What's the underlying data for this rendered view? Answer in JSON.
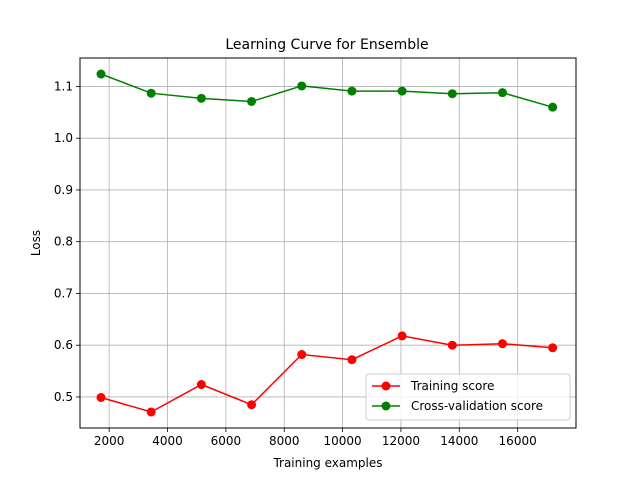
{
  "chart_data": {
    "type": "line",
    "title": "Learning Curve for Ensemble",
    "xlabel": "Training examples",
    "ylabel": "Loss",
    "xlim": [
      1000,
      18000
    ],
    "ylim": [
      0.44,
      1.155
    ],
    "xticks": [
      2000,
      4000,
      6000,
      8000,
      10000,
      12000,
      14000,
      16000
    ],
    "yticks": [
      0.5,
      0.6,
      0.7,
      0.8,
      0.9,
      1.0,
      1.1
    ],
    "xtick_labels": [
      "2000",
      "4000",
      "6000",
      "8000",
      "10000",
      "12000",
      "14000",
      "16000"
    ],
    "ytick_labels": [
      "0.5",
      "0.6",
      "0.7",
      "0.8",
      "0.9",
      "1.0",
      "1.1"
    ],
    "grid": true,
    "legend_position": "lower-right",
    "x": [
      1720,
      3440,
      5160,
      6880,
      8600,
      10320,
      12040,
      13760,
      15480,
      17200
    ],
    "series": [
      {
        "name": "Training score",
        "color": "#ff0000",
        "values": [
          0.499,
          0.471,
          0.524,
          0.485,
          0.582,
          0.572,
          0.618,
          0.6,
          0.603,
          0.595
        ]
      },
      {
        "name": "Cross-validation score",
        "color": "#008000",
        "values": [
          1.124,
          1.087,
          1.077,
          1.071,
          1.101,
          1.091,
          1.091,
          1.086,
          1.088,
          1.06
        ]
      }
    ]
  }
}
